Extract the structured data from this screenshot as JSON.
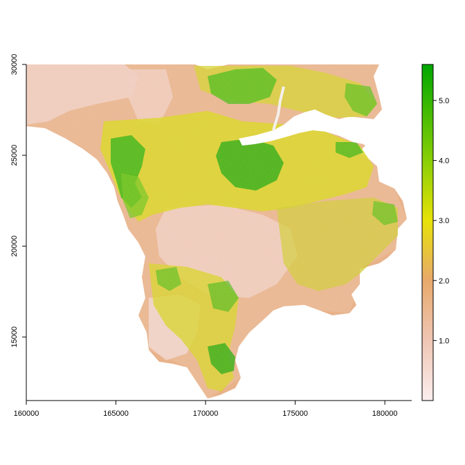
{
  "map": {
    "type": "raster",
    "x_axis": {
      "range": [
        160000,
        181500
      ],
      "ticks": [
        160000,
        165000,
        170000,
        175000,
        180000
      ],
      "tick_labels": [
        "160000",
        "165000",
        "170000",
        "175000",
        "180000"
      ]
    },
    "y_axis": {
      "range": [
        11500,
        30000
      ],
      "ticks": [
        15000,
        20000,
        25000,
        30000
      ],
      "tick_labels": [
        "15000",
        "20000",
        "25000",
        "30000"
      ]
    },
    "legend": {
      "placement": "right",
      "range": [
        0,
        5.6
      ],
      "ticks": [
        1.0,
        2.0,
        3.0,
        4.0,
        5.0
      ],
      "tick_labels": [
        "1.0",
        "2.0",
        "3.0",
        "4.0",
        "5.0"
      ],
      "color_stops": [
        {
          "value": 0.0,
          "color": "#fbeeee"
        },
        {
          "value": 1.0,
          "color": "#efc6b4"
        },
        {
          "value": 2.0,
          "color": "#e8a96c"
        },
        {
          "value": 3.0,
          "color": "#e7e208"
        },
        {
          "value": 4.0,
          "color": "#89cf05"
        },
        {
          "value": 5.6,
          "color": "#00a600"
        }
      ]
    },
    "colors": {
      "background": "#ffffff",
      "land_low": "#efc6b4",
      "land_mid": "#e8a96c",
      "land_high": "#e7e208",
      "land_very_high": "#00a600",
      "water": "#ffffff"
    }
  }
}
